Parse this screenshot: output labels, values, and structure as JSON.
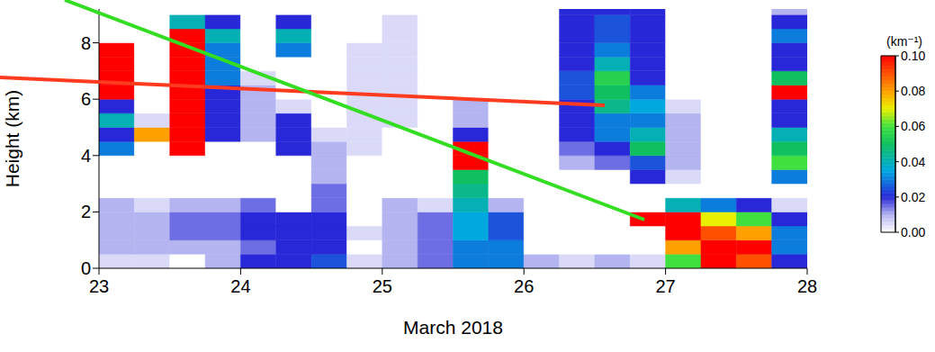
{
  "chart_data": {
    "type": "heatmap",
    "xlabel": "March 2018",
    "ylabel": "Height (km)",
    "xlim": [
      23,
      28
    ],
    "ylim": [
      0,
      9.2
    ],
    "xticks": [
      23,
      24,
      25,
      26,
      27,
      28
    ],
    "yticks": [
      0,
      2,
      4,
      6,
      8
    ],
    "x_edges": [
      23,
      23.25,
      23.5,
      23.75,
      24,
      24.25,
      24.5,
      24.75,
      25,
      25.25,
      25.5,
      25.75,
      26,
      26.25,
      26.5,
      26.75,
      27,
      27.25,
      27.5,
      27.75,
      28
    ],
    "y_edges": [
      0,
      0.5,
      1,
      1.5,
      2,
      2.5,
      3,
      3.5,
      4,
      4.5,
      5,
      5.5,
      6,
      6.5,
      7,
      7.5,
      8,
      8.5,
      9,
      9.2
    ],
    "cells": [
      [
        0.005,
        0.005,
        0,
        0.01,
        0.02,
        0.02,
        0.025,
        0.005,
        0.01,
        0.015,
        0.03,
        0.03,
        0.01,
        0.005,
        0.01,
        0.005,
        0.06,
        0.1,
        0.09,
        0.02
      ],
      [
        0.01,
        0.01,
        0.01,
        0.01,
        0.015,
        0.02,
        0.02,
        0,
        0.01,
        0.015,
        0.03,
        0.03,
        0,
        0,
        0,
        0,
        0.08,
        0.1,
        0.1,
        0.03
      ],
      [
        0.01,
        0.01,
        0.015,
        0.015,
        0.02,
        0.02,
        0.02,
        0.005,
        0.01,
        0.015,
        0.035,
        0.025,
        0,
        0,
        0,
        0,
        0.1,
        0.09,
        0.08,
        0.03
      ],
      [
        0.01,
        0.01,
        0.015,
        0.015,
        0.02,
        0.02,
        0.02,
        0,
        0.01,
        0.015,
        0.035,
        0.025,
        0,
        0,
        0,
        0.1,
        0.1,
        0.07,
        0.06,
        0.02
      ],
      [
        0.01,
        0.005,
        0.01,
        0.01,
        0.015,
        0,
        0.015,
        0,
        0.01,
        0.005,
        0.04,
        0.01,
        0,
        0,
        0,
        0,
        0.04,
        0.03,
        0.02,
        0.005
      ],
      [
        0,
        0,
        0,
        0,
        0,
        0,
        0.015,
        0,
        0,
        0,
        0.045,
        0,
        0,
        0,
        0,
        0,
        0,
        0,
        0,
        0
      ],
      [
        0,
        0,
        0,
        0,
        0,
        0,
        0.01,
        0,
        0,
        0,
        0.05,
        0,
        0,
        0,
        0,
        0.02,
        0.005,
        0,
        0,
        0.03
      ],
      [
        0,
        0,
        0,
        0,
        0,
        0,
        0.01,
        0,
        0,
        0,
        0.1,
        0,
        0,
        0.01,
        0.015,
        0.025,
        0.01,
        0,
        0,
        0.06
      ],
      [
        0.03,
        0,
        0.1,
        0,
        0,
        0.02,
        0.01,
        0.005,
        0,
        0,
        0.1,
        0,
        0,
        0.015,
        0.02,
        0.05,
        0.01,
        0,
        0,
        0.05
      ],
      [
        0.02,
        0.08,
        0.1,
        0.02,
        0.01,
        0.02,
        0.005,
        0.005,
        0,
        0,
        0.02,
        0,
        0,
        0.02,
        0.03,
        0.04,
        0.01,
        0,
        0,
        0.04
      ],
      [
        0.04,
        0.005,
        0.1,
        0.02,
        0.01,
        0.02,
        0,
        0.005,
        0.005,
        0,
        0.01,
        0,
        0,
        0.02,
        0.03,
        0.03,
        0.01,
        0,
        0,
        0.02
      ],
      [
        0.02,
        0,
        0.1,
        0.02,
        0.01,
        0.005,
        0,
        0.005,
        0.005,
        0,
        0.01,
        0,
        0,
        0.02,
        0.045,
        0.035,
        0.005,
        0,
        0,
        0.02
      ],
      [
        0.1,
        0,
        0.1,
        0.02,
        0.01,
        0,
        0,
        0.005,
        0.005,
        0,
        0,
        0,
        0,
        0.025,
        0.05,
        0.03,
        0,
        0,
        0,
        0.1
      ],
      [
        0.1,
        0,
        0.1,
        0.03,
        0.005,
        0,
        0,
        0.005,
        0.005,
        0,
        0,
        0,
        0,
        0.025,
        0.055,
        0.02,
        0,
        0,
        0,
        0.05
      ],
      [
        0.1,
        0,
        0.1,
        0.03,
        0,
        0,
        0,
        0.005,
        0.005,
        0,
        0,
        0,
        0,
        0.02,
        0.04,
        0.02,
        0,
        0,
        0,
        0.02
      ],
      [
        0.1,
        0,
        0.1,
        0.03,
        0,
        0.03,
        0,
        0.005,
        0.005,
        0,
        0,
        0,
        0,
        0.02,
        0.03,
        0.02,
        0,
        0,
        0,
        0.02
      ],
      [
        0,
        0,
        0.1,
        0.04,
        0,
        0.04,
        0,
        0,
        0.005,
        0,
        0,
        0,
        0,
        0.02,
        0.025,
        0.02,
        0,
        0,
        0,
        0.03
      ],
      [
        0,
        0,
        0.04,
        0.02,
        0,
        0.02,
        0,
        0,
        0.005,
        0,
        0,
        0,
        0,
        0.02,
        0.025,
        0.02,
        0,
        0,
        0,
        0.02
      ],
      [
        0,
        0,
        0,
        0,
        0,
        0,
        0,
        0,
        0,
        0,
        0,
        0,
        0,
        0.02,
        0.02,
        0.02,
        0,
        0,
        0,
        0.01
      ]
    ],
    "colorbar": {
      "label": "(km⁻¹)",
      "range": [
        0,
        0.1
      ],
      "ticks": [
        {
          "value": 0,
          "label": "0.00"
        },
        {
          "value": 0.02,
          "label": "0.02"
        },
        {
          "value": 0.04,
          "label": "0.04"
        },
        {
          "value": 0.06,
          "label": "0.06"
        },
        {
          "value": 0.08,
          "label": "0.08"
        },
        {
          "value": 0.1,
          "label": "0.10"
        }
      ]
    }
  }
}
